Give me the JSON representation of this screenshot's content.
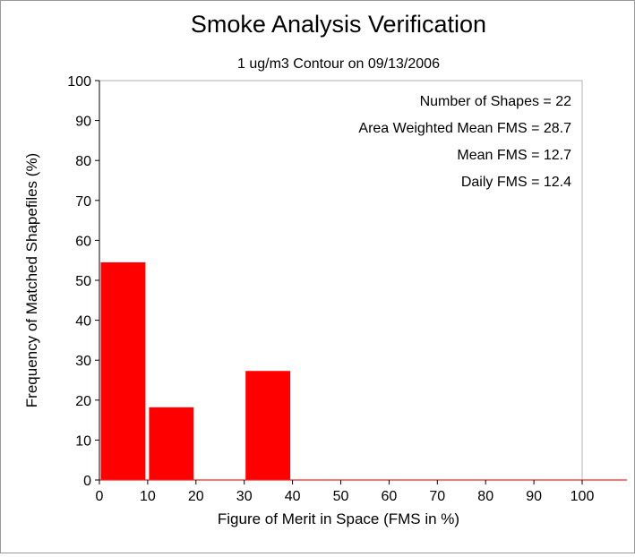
{
  "chart_data": {
    "type": "bar",
    "title": "Smoke Analysis Verification",
    "subtitle": "1 ug/m3 Contour on 09/13/2006",
    "xlabel": "Figure of Merit in Space (FMS in %)",
    "ylabel": "Frequency of Matched Shapefiles (%)",
    "xlim": [
      0,
      100
    ],
    "ylim": [
      0,
      100
    ],
    "x_ticks": [
      0,
      10,
      20,
      30,
      40,
      50,
      60,
      70,
      80,
      90,
      100
    ],
    "y_ticks": [
      0,
      10,
      20,
      30,
      40,
      50,
      60,
      70,
      80,
      90,
      100
    ],
    "bins": [
      {
        "from": 0,
        "to": 10,
        "value": 54.5
      },
      {
        "from": 10,
        "to": 20,
        "value": 18.2
      },
      {
        "from": 20,
        "to": 30,
        "value": 0
      },
      {
        "from": 30,
        "to": 40,
        "value": 27.3
      },
      {
        "from": 40,
        "to": 50,
        "value": 0
      },
      {
        "from": 50,
        "to": 60,
        "value": 0
      },
      {
        "from": 60,
        "to": 70,
        "value": 0
      },
      {
        "from": 70,
        "to": 80,
        "value": 0
      },
      {
        "from": 80,
        "to": 90,
        "value": 0
      },
      {
        "from": 90,
        "to": 100,
        "value": 0
      }
    ],
    "bar_color": "#ff0000",
    "grid": false,
    "annotations": [
      "Number of Shapes = 22",
      "Area Weighted Mean FMS = 28.7",
      "Mean FMS = 12.7",
      "Daily FMS = 12.4"
    ]
  }
}
